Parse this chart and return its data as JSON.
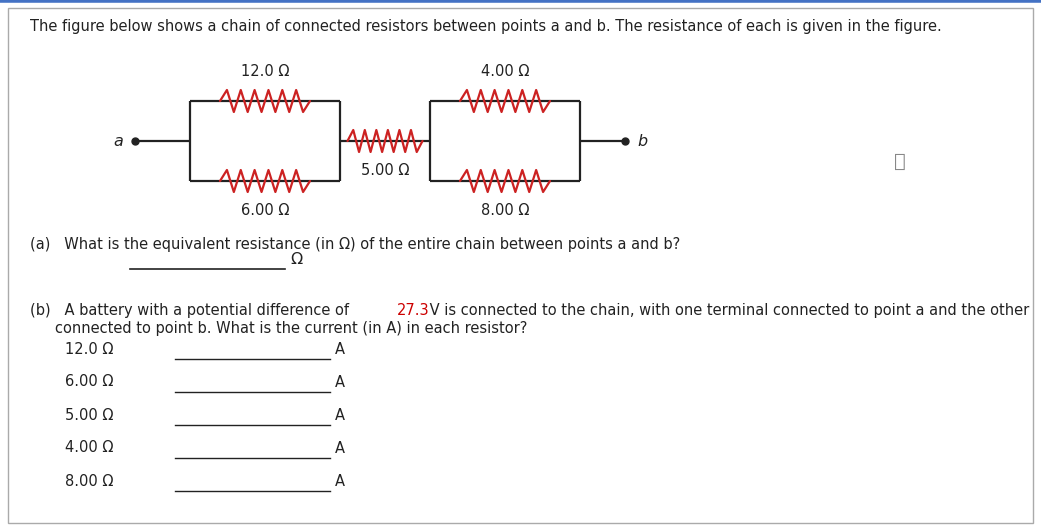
{
  "title": "The figure below shows a chain of connected resistors between points a and b. The resistance of each is given in the figure.",
  "part_a_label": "(a)   What is the equivalent resistance (in Ω) of the entire chain between points a and b?",
  "part_a_unit": "Ω",
  "part_b_prefix": "(b)   A battery with a potential difference of ",
  "part_b_voltage": "27.3",
  "part_b_voltage_color": "#cc0000",
  "part_b_suffix": " V is connected to the chain, with one terminal connected to point a and the other",
  "part_b_line2": "        connected to point b. What is the current (in A) in each resistor?",
  "part_b_resistors": [
    "12.0 Ω",
    "6.00 Ω",
    "5.00 Ω",
    "4.00 Ω",
    "8.00 Ω"
  ],
  "part_b_unit": "A",
  "bg_color": "#ffffff",
  "text_color": "#222222",
  "circuit_color": "#cc2222",
  "wire_color": "#222222",
  "border_color": "#aaaaaa",
  "topbar_color": "#4472c4",
  "info_color": "#888888",
  "label_a": "a",
  "label_b": "b",
  "r_labels": [
    "12.0 Ω",
    "6.00 Ω",
    "5.00 Ω",
    "4.00 Ω",
    "8.00 Ω"
  ]
}
